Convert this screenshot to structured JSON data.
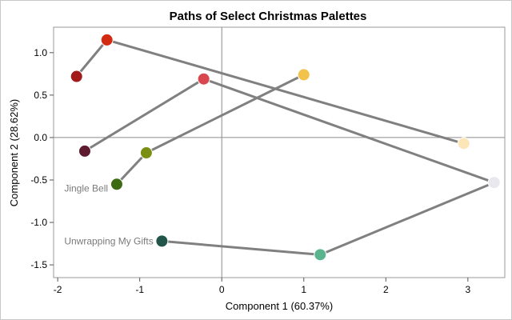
{
  "chart_data": {
    "type": "scatter",
    "title": "Paths of Select Christmas Palettes",
    "xlabel": "Component 1 (60.37%)",
    "ylabel": "Component 2 (28.62%)",
    "xlim": [
      -2.05,
      3.45
    ],
    "ylim": [
      -1.65,
      1.3
    ],
    "x_ticks": [
      -2,
      -1,
      0,
      1,
      2,
      3
    ],
    "y_ticks": [
      1.0,
      0.5,
      0.0,
      -0.5,
      -1.0,
      -1.5
    ],
    "x_tick_labels": [
      "-2",
      "-1",
      "0",
      "1",
      "2",
      "3"
    ],
    "y_tick_labels": [
      "1.0",
      "0.5",
      "0.0",
      "-0.5",
      "-1.0",
      "-1.5"
    ],
    "reference_lines": {
      "x": 0,
      "y": 0
    },
    "grid": false,
    "line_color": "#808080",
    "series": [
      {
        "name": "",
        "points": [
          {
            "x": -1.77,
            "y": 0.72,
            "color": "#A31A1A"
          },
          {
            "x": -1.4,
            "y": 1.15,
            "color": "#D32A12"
          },
          {
            "x": 2.95,
            "y": -0.07,
            "color": "#FCE6B8"
          }
        ]
      },
      {
        "name": "",
        "points": [
          {
            "x": -1.67,
            "y": -0.16,
            "color": "#5E1A2E"
          },
          {
            "x": -0.22,
            "y": 0.69,
            "color": "#D9474E"
          },
          {
            "x": 3.32,
            "y": -0.53,
            "color": "#E8E8EE"
          },
          {
            "x": 1.2,
            "y": -1.38,
            "color": "#5AB48E"
          },
          {
            "x": -0.73,
            "y": -1.22,
            "color": "#21554A"
          }
        ]
      },
      {
        "name": "Jingle Bell",
        "points": [
          {
            "x": -1.28,
            "y": -0.55,
            "color": "#3D6B12"
          },
          {
            "x": -0.92,
            "y": -0.18,
            "color": "#7A8E12"
          },
          {
            "x": 1.0,
            "y": 0.74,
            "color": "#F2C24A"
          }
        ]
      }
    ],
    "annotations": [
      {
        "text": "Jingle Bell",
        "x": -1.92,
        "y": -0.6
      },
      {
        "text": "Unwrapping My Gifts",
        "x": -1.92,
        "y": -1.22
      }
    ]
  }
}
